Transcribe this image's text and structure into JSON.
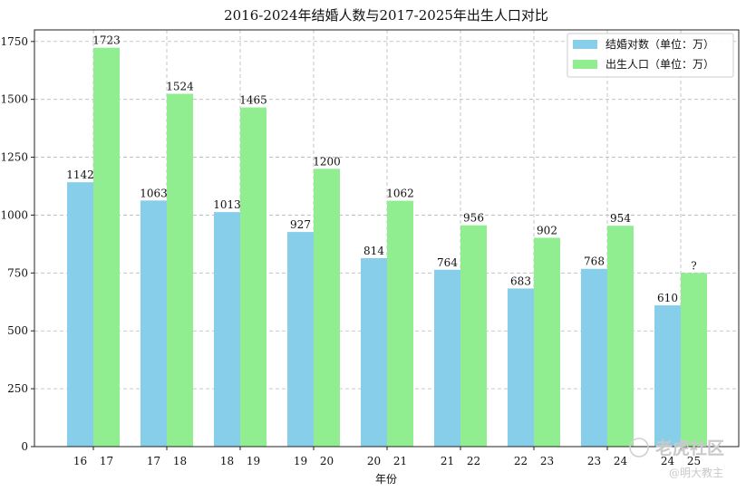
{
  "chart_data": {
    "type": "bar",
    "title": "2016-2024年结婚人数与2017-2025年出生人口对比",
    "xlabel": "年份",
    "ylabel": "",
    "ylim": [
      0,
      1800
    ],
    "yticks": [
      0,
      250,
      500,
      750,
      1000,
      1250,
      1500,
      1750
    ],
    "grid": true,
    "legend_position": "top-right",
    "series": [
      {
        "name": "结婚对数（单位：万）",
        "color": "#87ceeb",
        "x_labels": [
          "16",
          "17",
          "18",
          "19",
          "20",
          "21",
          "22",
          "23",
          "24"
        ],
        "values": [
          1142,
          1063,
          1013,
          927,
          814,
          764,
          683,
          768,
          610
        ],
        "value_labels": [
          "1142",
          "1063",
          "1013",
          "927",
          "814",
          "764",
          "683",
          "768",
          "610"
        ]
      },
      {
        "name": "出生人口（单位：万）",
        "color": "#90ee90",
        "x_labels": [
          "17",
          "18",
          "19",
          "20",
          "21",
          "22",
          "23",
          "24",
          "25"
        ],
        "values": [
          1723,
          1524,
          1465,
          1200,
          1062,
          956,
          902,
          954,
          750
        ],
        "value_labels": [
          "1723",
          "1524",
          "1465",
          "1200",
          "1062",
          "956",
          "902",
          "954",
          "?"
        ]
      }
    ]
  },
  "watermark": {
    "logo_text": "老虎社区",
    "handle_text": "@明大教主"
  }
}
